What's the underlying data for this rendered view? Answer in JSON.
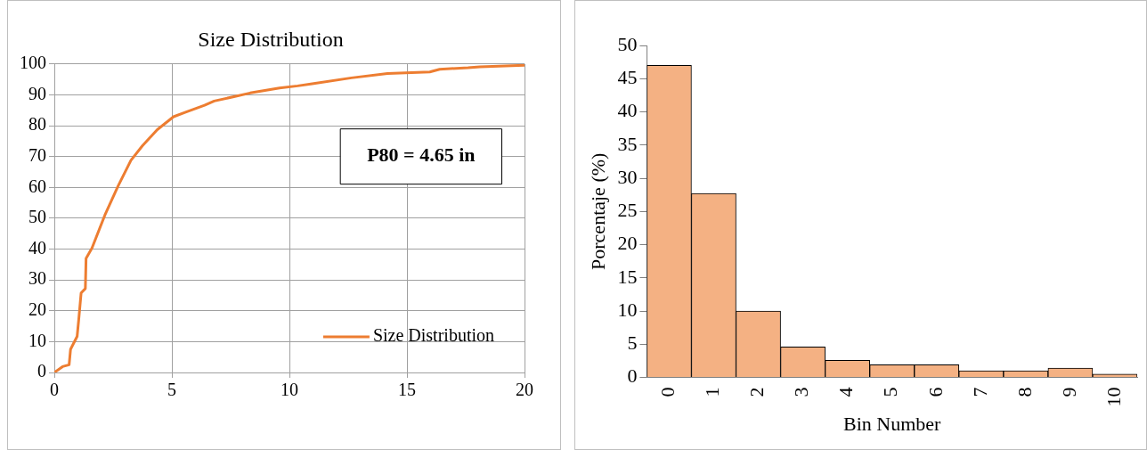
{
  "chart_data": [
    {
      "type": "line",
      "title": "Size Distribution",
      "x": [
        0,
        0.35,
        0.63,
        0.69,
        0.97,
        1.04,
        1.14,
        1.32,
        1.35,
        1.6,
        2.15,
        2.71,
        3.26,
        3.75,
        4.38,
        5.07,
        5.56,
        6.39,
        6.8,
        7.64,
        8.33,
        9.58,
        10.35,
        10.97,
        12.64,
        14.17,
        15.97,
        16.39,
        17.6,
        18.1,
        20
      ],
      "series": [
        {
          "name": "Size Distribution",
          "color": "#ed7d31",
          "values": [
            0,
            1.9,
            2.5,
            7.5,
            11.7,
            17.3,
            25.8,
            27.2,
            37,
            40.3,
            51,
            60.4,
            68.8,
            73.5,
            78.7,
            82.9,
            84.3,
            86.6,
            88,
            89.4,
            90.6,
            92.2,
            92.9,
            93.6,
            95.5,
            96.9,
            97.4,
            98.3,
            98.8,
            99.1,
            99.6
          ]
        }
      ],
      "xlim": [
        0,
        20
      ],
      "xticks": [
        0,
        5,
        10,
        15,
        20
      ],
      "ylim": [
        0,
        100
      ],
      "yticks": [
        0,
        10,
        20,
        30,
        40,
        50,
        60,
        70,
        80,
        90,
        100
      ],
      "grid": true,
      "legend": "bottom right",
      "marker": "none",
      "line_style": "solid",
      "annotations": [
        "P80 = 4.65 in"
      ]
    },
    {
      "type": "bar",
      "categories": [
        "0",
        "1",
        "2",
        "3",
        "4",
        "5",
        "6",
        "7",
        "8",
        "9",
        "10"
      ],
      "values": [
        47,
        27.7,
        10,
        4.6,
        2.6,
        1.9,
        1.9,
        1,
        1,
        1.4,
        0.5
      ],
      "color": "#f4b183",
      "xlabel": "Bin Number",
      "ylabel": "Porcentaje (%)",
      "ylim": [
        0,
        50
      ],
      "yticks": [
        0,
        5,
        10,
        15,
        20,
        25,
        30,
        35,
        40,
        45,
        50
      ],
      "grid": false
    }
  ]
}
